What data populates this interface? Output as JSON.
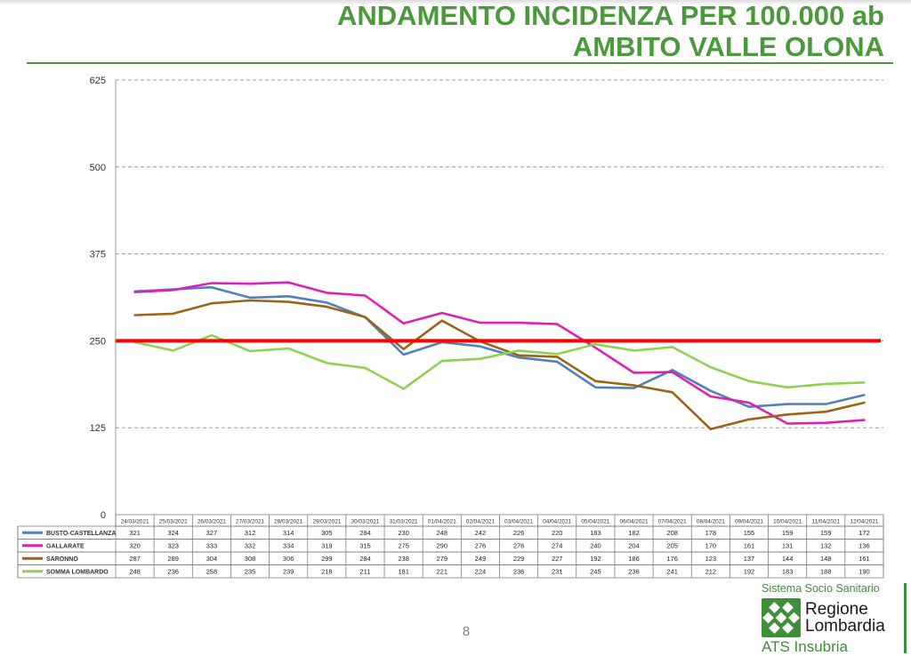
{
  "title": {
    "line1": "ANDAMENTO INCIDENZA PER 100.000 ab",
    "line2": "AMBITO VALLE OLONA"
  },
  "page_number": "8",
  "branding": {
    "top": "Sistema Socio Sanitario",
    "logo_name": "Regione Lombardia",
    "bottom": "ATS Insubria"
  },
  "chart_data": {
    "type": "line",
    "title": "",
    "xlabel": "",
    "ylabel": "",
    "ylim": [
      0,
      625
    ],
    "yticks": [
      0,
      125,
      250,
      375,
      500,
      625
    ],
    "grid": true,
    "legend": "data-table-left",
    "threshold": {
      "value": 250,
      "color": "#ff0000"
    },
    "categories": [
      "24/03/2021",
      "25/03/2021",
      "26/03/2021",
      "27/03/2021",
      "28/03/2021",
      "29/03/2021",
      "30/03/2021",
      "31/03/2021",
      "01/04/2021",
      "02/04/2021",
      "03/04/2021",
      "04/04/2021",
      "05/04/2021",
      "06/04/2021",
      "07/04/2021",
      "08/04/2021",
      "09/04/2021",
      "10/04/2021",
      "11/04/2021",
      "12/04/2021"
    ],
    "series": [
      {
        "name": "BUSTO-CASTELLANZA",
        "color": "#4f81bd",
        "values": [
          321,
          324,
          327,
          312,
          314,
          305,
          284,
          230,
          248,
          242,
          226,
          220,
          183,
          182,
          208,
          178,
          155,
          159,
          159,
          172
        ]
      },
      {
        "name": "GALLARATE",
        "color": "#e020b0",
        "values": [
          320,
          323,
          333,
          332,
          334,
          319,
          315,
          275,
          290,
          276,
          276,
          274,
          240,
          204,
          205,
          170,
          161,
          131,
          132,
          136
        ]
      },
      {
        "name": "SARONNO",
        "color": "#9c6414",
        "values": [
          287,
          289,
          304,
          308,
          306,
          299,
          284,
          238,
          279,
          249,
          229,
          227,
          192,
          186,
          176,
          123,
          137,
          144,
          148,
          161
        ]
      },
      {
        "name": "SOMMA LOMBARDO",
        "color": "#92d050",
        "values": [
          248,
          236,
          258,
          235,
          239,
          218,
          211,
          181,
          221,
          224,
          236,
          231,
          245,
          236,
          241,
          212,
          192,
          183,
          188,
          190
        ]
      }
    ]
  }
}
